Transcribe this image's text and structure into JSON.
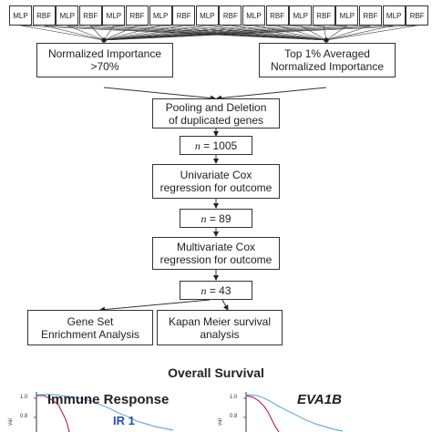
{
  "model_row": [
    "MLP",
    "RBF",
    "MLP",
    "RBF",
    "MLP",
    "RBF",
    "MLP",
    "RBF",
    "MLP",
    "RBF",
    "MLP",
    "RBF",
    "MLP",
    "RBF",
    "MLP",
    "RBF",
    "MLP",
    "RBF"
  ],
  "boxes": {
    "normalized_importance": [
      "Normalized Importance",
      ">70%"
    ],
    "top_averaged": [
      "Top 1% Averaged",
      "Normalized Importance"
    ],
    "pooling": [
      "Pooling and Deletion",
      "of duplicated genes"
    ],
    "n1": {
      "var": "n",
      "rest": " = 1005"
    },
    "univariate": [
      "Univariate Cox",
      "regression for outcome"
    ],
    "n2": {
      "var": "n",
      "rest": " = 89"
    },
    "multivariate": [
      "Multivariate Cox",
      "regression for outcome"
    ],
    "n3": {
      "var": "n",
      "rest": " = 43"
    },
    "gsea": [
      "Gene Set",
      "Enrichment Analysis"
    ],
    "kaplan": [
      "Kapan Meier survival",
      "analysis"
    ]
  },
  "survival": {
    "title": "Overall Survival",
    "panels": [
      {
        "title": "Immune Response",
        "label": "IR 1",
        "yticks": [
          "1.0",
          "0.8"
        ],
        "ylabel": "val"
      },
      {
        "title": "EVA1B",
        "yticks": [
          "1.0",
          "0.8"
        ],
        "ylabel": "val"
      }
    ]
  }
}
